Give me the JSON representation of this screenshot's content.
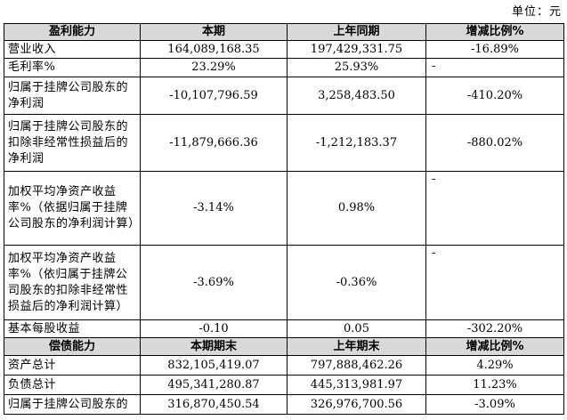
{
  "unit_label": "单位：元",
  "profit_section": {
    "headers": [
      "盈利能力",
      "本期",
      "上年同期",
      "增减比例%"
    ],
    "rows": [
      {
        "label": "营业收入",
        "current": "164,089,168.35",
        "prior": "197,429,331.75",
        "change": "-16.89%"
      },
      {
        "label": "毛利率%",
        "current": "23.29%",
        "prior": "25.93%",
        "change": "-"
      },
      {
        "label": "归属于挂牌公司股东的净利润",
        "current": "-10,107,796.59",
        "prior": "3,258,483.50",
        "change": "-410.20%"
      },
      {
        "label": "归属于挂牌公司股东的扣除非经常性损益后的净利润",
        "current": "-11,879,666.36",
        "prior": "-1,212,183.37",
        "change": "-880.02%"
      },
      {
        "label": "加权平均净资产收益率%（依据归属于挂牌公司股东的净利润计算）",
        "current": "-3.14%",
        "prior": "0.98%",
        "change": "-"
      },
      {
        "label": "加权平均净资产收益率%（依归属于挂牌公司股东的扣除非经常性损益后的净利润计算）",
        "current": "-3.69%",
        "prior": "-0.36%",
        "change": "-"
      },
      {
        "label": "基本每股收益",
        "current": "-0.10",
        "prior": "0.05",
        "change": "-302.20%"
      }
    ]
  },
  "solvency_section": {
    "headers": [
      "偿债能力",
      "本期期末",
      "上年期末",
      "增减比例%"
    ],
    "rows": [
      {
        "label": "资产总计",
        "current": "832,105,419.07",
        "prior": "797,888,462.26",
        "change": "4.29%"
      },
      {
        "label": "负债总计",
        "current": "495,341,280.87",
        "prior": "445,313,981.97",
        "change": "11.23%"
      },
      {
        "label": "归属于挂牌公司股东的",
        "current": "316,870,450.54",
        "prior": "326,976,700.56",
        "change": "-3.09%"
      }
    ]
  }
}
